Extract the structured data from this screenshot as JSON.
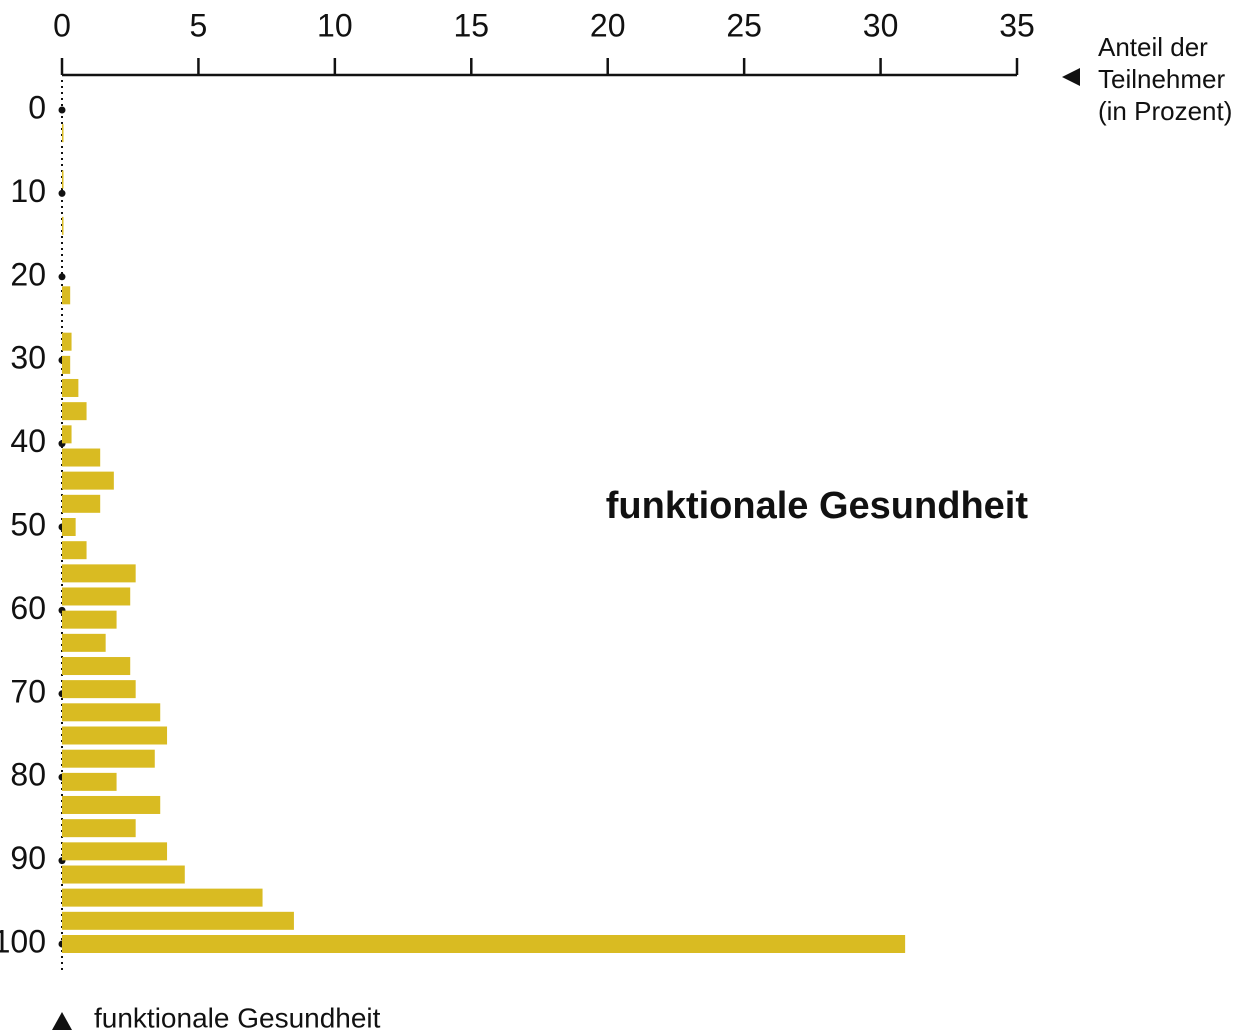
{
  "chart_data": {
    "type": "bar",
    "orientation": "horizontal",
    "annotation": "funktionale Gesundheit",
    "x_label": [
      "Anteil der",
      "Teilnehmer",
      "(in Prozent)"
    ],
    "y_label": "funktionale Gesundheit",
    "xlim": [
      0,
      35
    ],
    "xticks": [
      0,
      5,
      10,
      15,
      20,
      25,
      30,
      35
    ],
    "ylim": [
      0,
      103
    ],
    "yticks": [
      0,
      10,
      20,
      30,
      40,
      50,
      60,
      70,
      80,
      90,
      100
    ],
    "color": "#d9bb22",
    "y": [
      2.78,
      8.33,
      13.89,
      22.22,
      27.78,
      30.56,
      33.33,
      36.11,
      38.89,
      41.67,
      44.44,
      47.22,
      50,
      52.78,
      55.56,
      58.33,
      61.11,
      63.89,
      66.67,
      69.44,
      72.22,
      75,
      77.78,
      80.56,
      83.33,
      86.11,
      88.89,
      91.67,
      94.44,
      97.22,
      100
    ],
    "values": [
      0.05,
      0.05,
      0.05,
      0.3,
      0.35,
      0.3,
      0.6,
      0.9,
      0.35,
      1.4,
      1.9,
      1.4,
      0.5,
      0.9,
      2.7,
      2.5,
      2.0,
      1.6,
      2.5,
      2.7,
      3.6,
      3.85,
      3.4,
      2.0,
      3.6,
      2.7,
      3.85,
      4.5,
      7.35,
      8.5,
      30.9
    ]
  }
}
